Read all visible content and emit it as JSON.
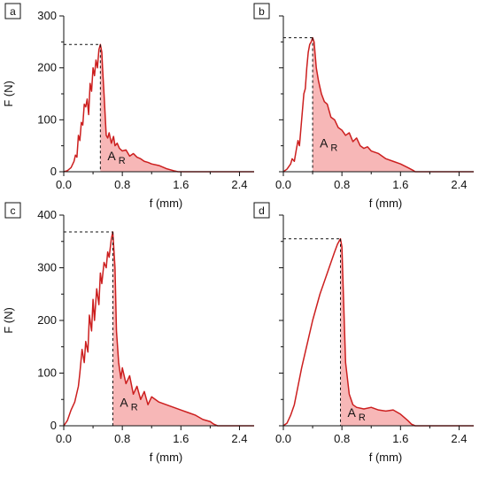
{
  "figure": {
    "colors": {
      "curve": "#cc1f1f",
      "fill": "#f7b7b7",
      "axis": "#111111",
      "guide": "#111111"
    },
    "f_label": "f (mm)",
    "F_label": "F (N)",
    "area_label": "A",
    "area_subscript": "R"
  },
  "chart_data": [
    {
      "type": "area",
      "panel": "a",
      "xlabel": "f (mm)",
      "ylabel": "F (N)",
      "xlim": [
        0,
        2.6
      ],
      "ylim": [
        0,
        300
      ],
      "x_ticks": [
        "0.0",
        "0.8",
        "1.6",
        "2.4"
      ],
      "y_ticks": [
        "0",
        "100",
        "200",
        "300"
      ],
      "peak": {
        "f": 0.5,
        "F": 245
      },
      "shaded_from": 0.5,
      "annotation": "A_R",
      "curve": {
        "x": [
          0.0,
          0.05,
          0.1,
          0.14,
          0.16,
          0.18,
          0.2,
          0.22,
          0.24,
          0.26,
          0.28,
          0.3,
          0.32,
          0.34,
          0.36,
          0.38,
          0.4,
          0.42,
          0.44,
          0.46,
          0.48,
          0.5,
          0.52,
          0.53,
          0.55,
          0.58,
          0.6,
          0.62,
          0.65,
          0.68,
          0.7,
          0.73,
          0.76,
          0.8,
          0.85,
          0.9,
          0.95,
          1.0,
          1.05,
          1.1,
          1.15,
          1.2,
          1.3,
          1.4,
          1.5,
          1.56,
          1.6,
          2.6
        ],
        "y": [
          0,
          2,
          8,
          20,
          32,
          28,
          70,
          60,
          95,
          90,
          130,
          125,
          140,
          110,
          170,
          155,
          200,
          185,
          215,
          200,
          235,
          245,
          230,
          200,
          150,
          70,
          65,
          75,
          55,
          68,
          50,
          55,
          45,
          40,
          42,
          30,
          35,
          28,
          25,
          20,
          18,
          15,
          12,
          6,
          2,
          0,
          0,
          0
        ]
      }
    },
    {
      "type": "area",
      "panel": "b",
      "xlabel": "f (mm)",
      "ylabel": "",
      "xlim": [
        0,
        2.6
      ],
      "ylim": [
        0,
        300
      ],
      "x_ticks": [
        "0.0",
        "0.8",
        "1.6",
        "2.4"
      ],
      "y_ticks": [],
      "peak": {
        "f": 0.4,
        "F": 258
      },
      "shaded_from": 0.4,
      "annotation": "A_R",
      "curve": {
        "x": [
          0.0,
          0.05,
          0.1,
          0.12,
          0.15,
          0.18,
          0.2,
          0.22,
          0.25,
          0.28,
          0.3,
          0.32,
          0.34,
          0.36,
          0.38,
          0.4,
          0.42,
          0.45,
          0.48,
          0.52,
          0.56,
          0.6,
          0.65,
          0.7,
          0.75,
          0.8,
          0.85,
          0.9,
          0.95,
          1.0,
          1.05,
          1.1,
          1.15,
          1.2,
          1.3,
          1.4,
          1.5,
          1.6,
          1.7,
          1.78,
          1.8,
          2.6
        ],
        "y": [
          0,
          5,
          15,
          25,
          20,
          45,
          60,
          50,
          100,
          150,
          160,
          200,
          230,
          245,
          250,
          258,
          250,
          200,
          175,
          150,
          135,
          130,
          105,
          100,
          85,
          80,
          70,
          75,
          58,
          65,
          50,
          45,
          48,
          40,
          35,
          25,
          20,
          15,
          8,
          2,
          0,
          0
        ]
      }
    },
    {
      "type": "area",
      "panel": "c",
      "xlabel": "f (mm)",
      "ylabel": "F (N)",
      "xlim": [
        0,
        2.6
      ],
      "ylim": [
        0,
        400
      ],
      "x_ticks": [
        "0.0",
        "0.8",
        "1.6",
        "2.4"
      ],
      "y_ticks": [
        "0",
        "100",
        "200",
        "300",
        "400"
      ],
      "peak": {
        "f": 0.67,
        "F": 368
      },
      "shaded_from": 0.67,
      "annotation": "A_R",
      "curve": {
        "x": [
          0.0,
          0.05,
          0.1,
          0.15,
          0.2,
          0.22,
          0.25,
          0.28,
          0.3,
          0.33,
          0.35,
          0.38,
          0.4,
          0.42,
          0.45,
          0.48,
          0.5,
          0.52,
          0.55,
          0.58,
          0.6,
          0.62,
          0.65,
          0.67,
          0.7,
          0.72,
          0.75,
          0.78,
          0.8,
          0.85,
          0.9,
          0.95,
          1.0,
          1.05,
          1.1,
          1.15,
          1.2,
          1.3,
          1.4,
          1.5,
          1.6,
          1.7,
          1.8,
          1.9,
          2.0,
          2.05,
          2.1,
          2.6
        ],
        "y": [
          0,
          10,
          30,
          45,
          75,
          100,
          145,
          120,
          160,
          140,
          210,
          180,
          240,
          200,
          260,
          230,
          290,
          270,
          310,
          300,
          330,
          320,
          355,
          368,
          300,
          180,
          120,
          90,
          110,
          80,
          95,
          60,
          75,
          50,
          65,
          40,
          55,
          45,
          40,
          35,
          30,
          25,
          20,
          12,
          8,
          3,
          0,
          0
        ]
      }
    },
    {
      "type": "area",
      "panel": "d",
      "xlabel": "f (mm)",
      "ylabel": "",
      "xlim": [
        0,
        2.6
      ],
      "ylim": [
        0,
        400
      ],
      "x_ticks": [
        "0.0",
        "0.8",
        "1.6",
        "2.4"
      ],
      "y_ticks": [],
      "peak": {
        "f": 0.78,
        "F": 355
      },
      "shaded_from": 0.78,
      "annotation": "A_R",
      "curve": {
        "x": [
          0.0,
          0.05,
          0.1,
          0.15,
          0.2,
          0.25,
          0.3,
          0.35,
          0.4,
          0.45,
          0.5,
          0.55,
          0.6,
          0.65,
          0.7,
          0.74,
          0.78,
          0.8,
          0.82,
          0.85,
          0.9,
          0.95,
          1.0,
          1.1,
          1.2,
          1.3,
          1.4,
          1.5,
          1.6,
          1.7,
          1.75,
          1.8,
          2.6
        ],
        "y": [
          0,
          5,
          20,
          40,
          75,
          110,
          140,
          170,
          200,
          225,
          250,
          270,
          290,
          310,
          330,
          345,
          355,
          340,
          250,
          120,
          60,
          40,
          35,
          32,
          35,
          30,
          28,
          30,
          22,
          10,
          3,
          0,
          0
        ]
      }
    }
  ]
}
